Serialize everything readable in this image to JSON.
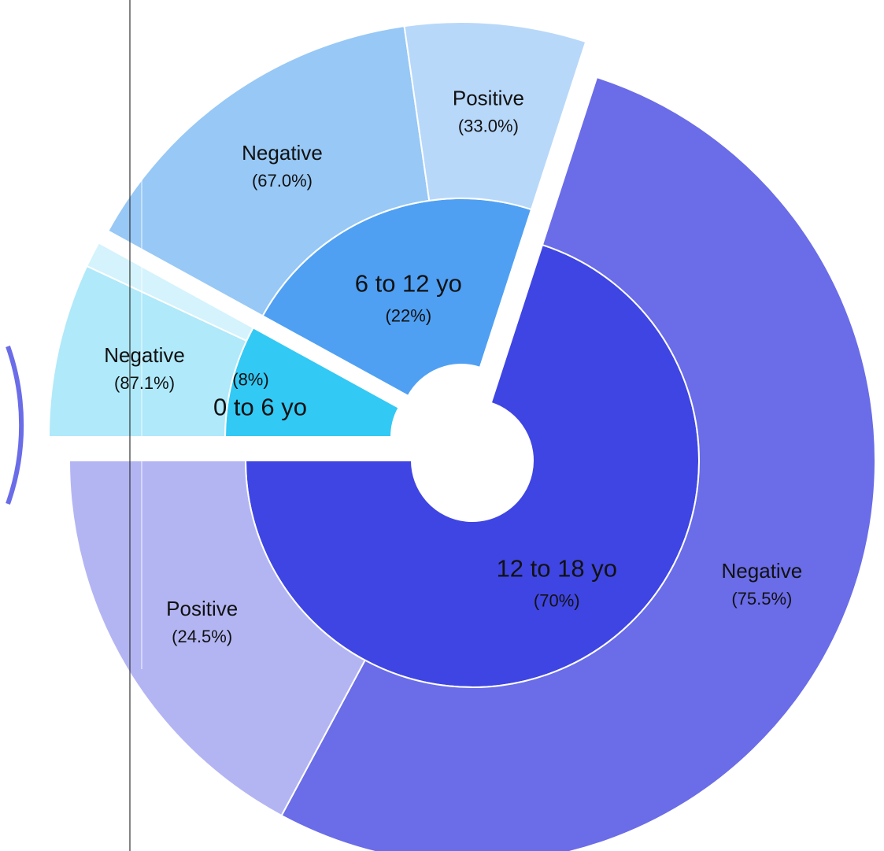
{
  "chart_data": {
    "type": "sunburst",
    "title": "",
    "groups": [
      {
        "label": "0 to 6 yo",
        "percent_label": "(8%)",
        "share": 8,
        "color": "#32c9f5",
        "children": [
          {
            "label": "Negative",
            "percent_label": "(87.1%)",
            "share": 87.1,
            "color": "#afe9fa"
          },
          {
            "label": "",
            "percent_label": "",
            "share": 12.9,
            "color": "#d4f3fc"
          }
        ]
      },
      {
        "label": "6 to 12 yo",
        "percent_label": "(22%)",
        "share": 22,
        "color": "#4fa0f3",
        "children": [
          {
            "label": "Negative",
            "percent_label": "(67.0%)",
            "share": 67.0,
            "color": "#97c8f6"
          },
          {
            "label": "Positive",
            "percent_label": "(33.0%)",
            "share": 33.0,
            "color": "#b8d8fa"
          }
        ]
      },
      {
        "label": "12 to 18 yo",
        "percent_label": "(70%)",
        "share": 70,
        "color": "#3f45e2",
        "children": [
          {
            "label": "Negative",
            "percent_label": "(75.5%)",
            "share": 75.5,
            "color": "#6a6ce8"
          },
          {
            "label": "Positive",
            "percent_label": "(24.5%)",
            "share": 24.5,
            "color": "#b3b5f3"
          }
        ]
      }
    ]
  }
}
